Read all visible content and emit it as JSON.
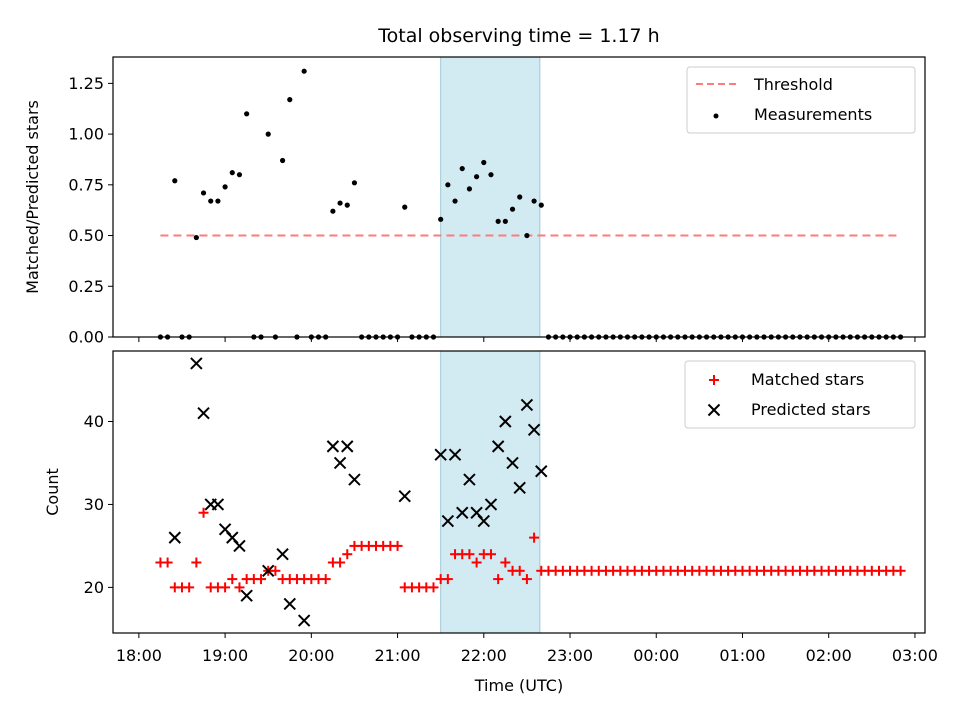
{
  "chart_data": [
    {
      "type": "scatter",
      "title": "Total observing time = 1.17 h",
      "ylabel": "Matched/Predicted stars",
      "ylim": [
        0,
        1.38
      ],
      "yticks": [
        "0.00",
        "0.25",
        "0.50",
        "0.75",
        "1.00",
        "1.25"
      ],
      "threshold": {
        "name": "Threshold",
        "value": 0.5,
        "x_start": "18:15",
        "x_end": "02:50",
        "color": "#ff7a7a"
      },
      "series": [
        {
          "name": "Measurements",
          "color": "#000000",
          "points": [
            [
              "18:15",
              0.0
            ],
            [
              "18:20",
              0.0
            ],
            [
              "18:25",
              0.77
            ],
            [
              "18:30",
              0.0
            ],
            [
              "18:35",
              0.0
            ],
            [
              "18:40",
              0.49
            ],
            [
              "18:45",
              0.71
            ],
            [
              "18:50",
              0.67
            ],
            [
              "18:55",
              0.67
            ],
            [
              "19:00",
              0.74
            ],
            [
              "19:05",
              0.81
            ],
            [
              "19:10",
              0.8
            ],
            [
              "19:15",
              1.1
            ],
            [
              "19:20",
              0.0
            ],
            [
              "19:25",
              0.0
            ],
            [
              "19:30",
              1.0
            ],
            [
              "19:35",
              0.0
            ],
            [
              "19:40",
              0.87
            ],
            [
              "19:45",
              1.17
            ],
            [
              "19:50",
              0.0
            ],
            [
              "19:55",
              1.31
            ],
            [
              "20:00",
              0.0
            ],
            [
              "20:05",
              0.0
            ],
            [
              "20:10",
              0.0
            ],
            [
              "20:15",
              0.62
            ],
            [
              "20:20",
              0.66
            ],
            [
              "20:25",
              0.65
            ],
            [
              "20:30",
              0.76
            ],
            [
              "20:35",
              0.0
            ],
            [
              "20:40",
              0.0
            ],
            [
              "20:45",
              0.0
            ],
            [
              "20:50",
              0.0
            ],
            [
              "20:55",
              0.0
            ],
            [
              "21:00",
              0.0
            ],
            [
              "21:05",
              0.64
            ],
            [
              "21:10",
              0.0
            ],
            [
              "21:15",
              0.0
            ],
            [
              "21:20",
              0.0
            ],
            [
              "21:25",
              0.0
            ],
            [
              "21:30",
              0.58
            ],
            [
              "21:35",
              0.75
            ],
            [
              "21:40",
              0.67
            ],
            [
              "21:45",
              0.83
            ],
            [
              "21:50",
              0.73
            ],
            [
              "21:55",
              0.79
            ],
            [
              "22:00",
              0.86
            ],
            [
              "22:05",
              0.8
            ],
            [
              "22:10",
              0.57
            ],
            [
              "22:15",
              0.57
            ],
            [
              "22:20",
              0.63
            ],
            [
              "22:25",
              0.69
            ],
            [
              "22:30",
              0.5
            ],
            [
              "22:35",
              0.67
            ],
            [
              "22:40",
              0.65
            ],
            [
              "22:45",
              0.0
            ],
            [
              "22:50",
              0.0
            ],
            [
              "22:55",
              0.0
            ],
            [
              "23:00",
              0.0
            ],
            [
              "23:05",
              0.0
            ],
            [
              "23:10",
              0.0
            ],
            [
              "23:15",
              0.0
            ],
            [
              "23:20",
              0.0
            ],
            [
              "23:25",
              0.0
            ],
            [
              "23:30",
              0.0
            ],
            [
              "23:35",
              0.0
            ],
            [
              "23:40",
              0.0
            ],
            [
              "23:45",
              0.0
            ],
            [
              "23:50",
              0.0
            ],
            [
              "23:55",
              0.0
            ],
            [
              "00:00",
              0.0
            ],
            [
              "00:05",
              0.0
            ],
            [
              "00:10",
              0.0
            ],
            [
              "00:15",
              0.0
            ],
            [
              "00:20",
              0.0
            ],
            [
              "00:25",
              0.0
            ],
            [
              "00:30",
              0.0
            ],
            [
              "00:35",
              0.0
            ],
            [
              "00:40",
              0.0
            ],
            [
              "00:45",
              0.0
            ],
            [
              "00:50",
              0.0
            ],
            [
              "00:55",
              0.0
            ],
            [
              "01:00",
              0.0
            ],
            [
              "01:05",
              0.0
            ],
            [
              "01:10",
              0.0
            ],
            [
              "01:15",
              0.0
            ],
            [
              "01:20",
              0.0
            ],
            [
              "01:25",
              0.0
            ],
            [
              "01:30",
              0.0
            ],
            [
              "01:35",
              0.0
            ],
            [
              "01:40",
              0.0
            ],
            [
              "01:45",
              0.0
            ],
            [
              "01:50",
              0.0
            ],
            [
              "01:55",
              0.0
            ],
            [
              "02:00",
              0.0
            ],
            [
              "02:05",
              0.0
            ],
            [
              "02:10",
              0.0
            ],
            [
              "02:15",
              0.0
            ],
            [
              "02:20",
              0.0
            ],
            [
              "02:25",
              0.0
            ],
            [
              "02:30",
              0.0
            ],
            [
              "02:35",
              0.0
            ],
            [
              "02:40",
              0.0
            ],
            [
              "02:45",
              0.0
            ],
            [
              "02:50",
              0.0
            ]
          ]
        }
      ],
      "legend_position": "top-right"
    },
    {
      "type": "scatter",
      "ylabel": "Count",
      "xlabel": "Time (UTC)",
      "ylim": [
        14.5,
        48.5
      ],
      "yticks": [
        "20",
        "30",
        "40"
      ],
      "xticks": [
        "18:00",
        "19:00",
        "20:00",
        "21:00",
        "22:00",
        "23:00",
        "00:00",
        "01:00",
        "02:00",
        "03:00"
      ],
      "series": [
        {
          "name": "Matched stars",
          "color": "#ff0000",
          "marker": "plus",
          "points": [
            [
              "18:15",
              23
            ],
            [
              "18:20",
              23
            ],
            [
              "18:25",
              20
            ],
            [
              "18:30",
              20
            ],
            [
              "18:35",
              20
            ],
            [
              "18:40",
              23
            ],
            [
              "18:45",
              29
            ],
            [
              "18:50",
              20
            ],
            [
              "18:55",
              20
            ],
            [
              "19:00",
              20
            ],
            [
              "19:05",
              21
            ],
            [
              "19:10",
              20
            ],
            [
              "19:15",
              21
            ],
            [
              "19:20",
              21
            ],
            [
              "19:25",
              21
            ],
            [
              "19:30",
              22
            ],
            [
              "19:35",
              22
            ],
            [
              "19:40",
              21
            ],
            [
              "19:45",
              21
            ],
            [
              "19:50",
              21
            ],
            [
              "19:55",
              21
            ],
            [
              "20:00",
              21
            ],
            [
              "20:05",
              21
            ],
            [
              "20:10",
              21
            ],
            [
              "20:15",
              23
            ],
            [
              "20:20",
              23
            ],
            [
              "20:25",
              24
            ],
            [
              "20:30",
              25
            ],
            [
              "20:35",
              25
            ],
            [
              "20:40",
              25
            ],
            [
              "20:45",
              25
            ],
            [
              "20:50",
              25
            ],
            [
              "20:55",
              25
            ],
            [
              "21:00",
              25
            ],
            [
              "21:05",
              20
            ],
            [
              "21:10",
              20
            ],
            [
              "21:15",
              20
            ],
            [
              "21:20",
              20
            ],
            [
              "21:25",
              20
            ],
            [
              "21:30",
              21
            ],
            [
              "21:35",
              21
            ],
            [
              "21:40",
              24
            ],
            [
              "21:45",
              24
            ],
            [
              "21:50",
              24
            ],
            [
              "21:55",
              23
            ],
            [
              "22:00",
              24
            ],
            [
              "22:05",
              24
            ],
            [
              "22:10",
              21
            ],
            [
              "22:15",
              23
            ],
            [
              "22:20",
              22
            ],
            [
              "22:25",
              22
            ],
            [
              "22:30",
              21
            ],
            [
              "22:35",
              26
            ],
            [
              "22:40",
              22
            ],
            [
              "22:45",
              22
            ],
            [
              "22:50",
              22
            ],
            [
              "22:55",
              22
            ],
            [
              "23:00",
              22
            ],
            [
              "23:05",
              22
            ],
            [
              "23:10",
              22
            ],
            [
              "23:15",
              22
            ],
            [
              "23:20",
              22
            ],
            [
              "23:25",
              22
            ],
            [
              "23:30",
              22
            ],
            [
              "23:35",
              22
            ],
            [
              "23:40",
              22
            ],
            [
              "23:45",
              22
            ],
            [
              "23:50",
              22
            ],
            [
              "23:55",
              22
            ],
            [
              "00:00",
              22
            ],
            [
              "00:05",
              22
            ],
            [
              "00:10",
              22
            ],
            [
              "00:15",
              22
            ],
            [
              "00:20",
              22
            ],
            [
              "00:25",
              22
            ],
            [
              "00:30",
              22
            ],
            [
              "00:35",
              22
            ],
            [
              "00:40",
              22
            ],
            [
              "00:45",
              22
            ],
            [
              "00:50",
              22
            ],
            [
              "00:55",
              22
            ],
            [
              "01:00",
              22
            ],
            [
              "01:05",
              22
            ],
            [
              "01:10",
              22
            ],
            [
              "01:15",
              22
            ],
            [
              "01:20",
              22
            ],
            [
              "01:25",
              22
            ],
            [
              "01:30",
              22
            ],
            [
              "01:35",
              22
            ],
            [
              "01:40",
              22
            ],
            [
              "01:45",
              22
            ],
            [
              "01:50",
              22
            ],
            [
              "01:55",
              22
            ],
            [
              "02:00",
              22
            ],
            [
              "02:05",
              22
            ],
            [
              "02:10",
              22
            ],
            [
              "02:15",
              22
            ],
            [
              "02:20",
              22
            ],
            [
              "02:25",
              22
            ],
            [
              "02:30",
              22
            ],
            [
              "02:35",
              22
            ],
            [
              "02:40",
              22
            ],
            [
              "02:45",
              22
            ],
            [
              "02:50",
              22
            ]
          ]
        },
        {
          "name": "Predicted stars",
          "color": "#000000",
          "marker": "x",
          "points": [
            [
              "18:25",
              26
            ],
            [
              "18:40",
              47
            ],
            [
              "18:45",
              41
            ],
            [
              "18:50",
              30
            ],
            [
              "18:55",
              30
            ],
            [
              "19:00",
              27
            ],
            [
              "19:05",
              26
            ],
            [
              "19:10",
              25
            ],
            [
              "19:15",
              19
            ],
            [
              "19:30",
              22
            ],
            [
              "19:40",
              24
            ],
            [
              "19:45",
              18
            ],
            [
              "19:55",
              16
            ],
            [
              "20:15",
              37
            ],
            [
              "20:20",
              35
            ],
            [
              "20:25",
              37
            ],
            [
              "20:30",
              33
            ],
            [
              "21:05",
              31
            ],
            [
              "21:30",
              36
            ],
            [
              "21:35",
              28
            ],
            [
              "21:40",
              36
            ],
            [
              "21:45",
              29
            ],
            [
              "21:50",
              33
            ],
            [
              "21:55",
              29
            ],
            [
              "22:00",
              28
            ],
            [
              "22:05",
              30
            ],
            [
              "22:10",
              37
            ],
            [
              "22:15",
              40
            ],
            [
              "22:20",
              35
            ],
            [
              "22:25",
              32
            ],
            [
              "22:30",
              42
            ],
            [
              "22:35",
              39
            ],
            [
              "22:40",
              34
            ]
          ]
        }
      ],
      "legend_position": "top-right"
    }
  ],
  "shaded_region": {
    "start": "21:30",
    "end": "22:39",
    "color": "#add8e6"
  }
}
